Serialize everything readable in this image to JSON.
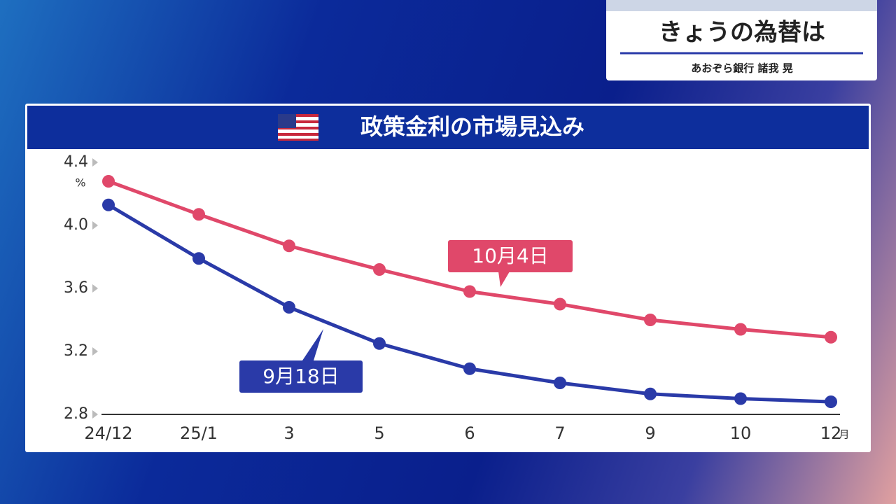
{
  "header": {
    "title": "きょうの為替は",
    "subtitle": "あおぞら銀行 諸我 晃"
  },
  "chart_data": {
    "type": "line",
    "title": "政策金利の市場見込み",
    "y_unit": "%",
    "x_unit": "月",
    "categories": [
      "24/12",
      "25/1",
      "3",
      "5",
      "6",
      "7",
      "9",
      "10",
      "12"
    ],
    "series": [
      {
        "name": "10月4日",
        "color": "#e0486a",
        "values": [
          4.28,
          4.07,
          3.87,
          3.72,
          3.58,
          3.5,
          3.4,
          3.34,
          3.29
        ]
      },
      {
        "name": "9月18日",
        "color": "#2a3aa8",
        "values": [
          4.13,
          3.79,
          3.48,
          3.25,
          3.09,
          3.0,
          2.93,
          2.9,
          2.88
        ]
      }
    ],
    "ylim": [
      2.8,
      4.4
    ],
    "yticks": [
      2.8,
      3.2,
      3.6,
      {
        "value": 4,
        "label": "4.0"
      },
      4.4
    ]
  }
}
